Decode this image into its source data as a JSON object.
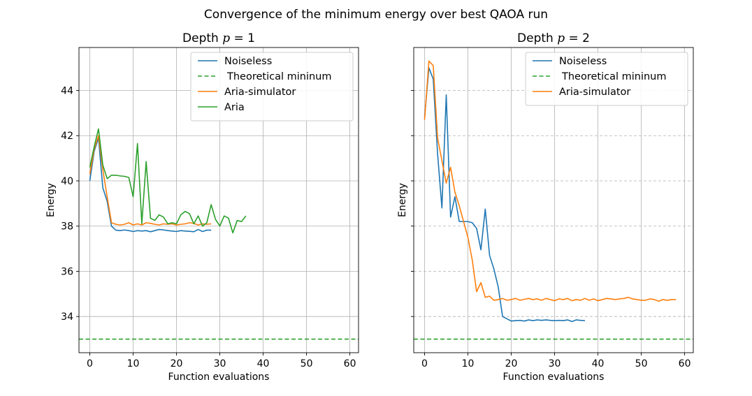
{
  "figure": {
    "suptitle": "Convergence of the minimum energy over best QAOA run"
  },
  "chart_data": [
    {
      "type": "line",
      "title": "Depth $p = 1$",
      "title_parts": {
        "prefix": "Depth ",
        "var": "p",
        "suffix": " = 1"
      },
      "xlabel": "Function evaluations",
      "ylabel": "Energy",
      "xlim": [
        -2.5,
        62
      ],
      "ylim": [
        32.4,
        45.9
      ],
      "xticks": [
        0,
        10,
        20,
        30,
        40,
        50,
        60
      ],
      "yticks": [
        34,
        36,
        38,
        40,
        42,
        44
      ],
      "grid": "both",
      "legend_position": "top-right",
      "series": [
        {
          "name": "Noiseless",
          "color": "#1f77b4",
          "style": "solid",
          "x": [
            0,
            1,
            2,
            3,
            4,
            5,
            6,
            7,
            8,
            9,
            10,
            11,
            12,
            13,
            14,
            15,
            16,
            17,
            18,
            19,
            20,
            21,
            22,
            23,
            24,
            25,
            26,
            27,
            28
          ],
          "y": [
            40.0,
            41.3,
            41.9,
            39.7,
            39.1,
            38.0,
            37.82,
            37.8,
            37.83,
            37.8,
            37.76,
            37.8,
            37.78,
            37.8,
            37.75,
            37.8,
            37.85,
            37.83,
            37.8,
            37.78,
            37.76,
            37.8,
            37.78,
            37.77,
            37.75,
            37.85,
            37.76,
            37.82,
            37.82
          ]
        },
        {
          "name": "Theoretical mininum",
          "color": "#2ca02c",
          "style": "dashed",
          "hline": 33.0
        },
        {
          "name": "Aria-simulator",
          "color": "#ff7f0e",
          "style": "solid",
          "x": [
            0,
            1,
            2,
            3,
            4,
            5,
            6,
            7,
            8,
            9,
            10,
            11,
            12,
            13,
            14,
            15,
            16,
            17,
            18,
            19,
            20,
            21,
            22,
            23,
            24,
            25,
            26,
            27,
            28
          ],
          "y": [
            40.3,
            41.4,
            42.0,
            40.5,
            39.3,
            38.15,
            38.08,
            38.05,
            38.08,
            38.15,
            38.05,
            38.1,
            38.05,
            38.15,
            38.12,
            38.08,
            38.05,
            38.1,
            38.08,
            38.1,
            38.05,
            38.08,
            38.1,
            38.15,
            38.12,
            38.05,
            38.1,
            38.08,
            38.1
          ]
        },
        {
          "name": "Aria",
          "color": "#2ca02c",
          "style": "solid",
          "x": [
            0,
            1,
            2,
            3,
            4,
            5,
            6,
            7,
            8,
            9,
            10,
            11,
            12,
            13,
            14,
            15,
            16,
            17,
            18,
            19,
            20,
            21,
            22,
            23,
            24,
            25,
            26,
            27,
            28,
            29,
            30,
            31,
            32,
            33,
            34,
            35,
            36
          ],
          "y": [
            40.6,
            41.5,
            42.3,
            40.7,
            40.1,
            40.25,
            40.25,
            40.22,
            40.2,
            40.15,
            39.3,
            41.65,
            38.1,
            40.85,
            38.35,
            38.25,
            38.5,
            38.4,
            38.1,
            38.15,
            38.1,
            38.5,
            38.65,
            38.55,
            38.1,
            38.45,
            38.0,
            38.15,
            38.95,
            38.3,
            38.0,
            38.45,
            38.35,
            37.7,
            38.25,
            38.2,
            38.45
          ]
        }
      ]
    },
    {
      "type": "line",
      "title": "Depth $p = 2$",
      "title_parts": {
        "prefix": "Depth ",
        "var": "p",
        "suffix": " = 2"
      },
      "xlabel": "Function evaluations",
      "ylabel": "Energy",
      "xlim": [
        -2.5,
        62
      ],
      "ylim": [
        32.4,
        45.9
      ],
      "xticks": [
        0,
        10,
        20,
        30,
        40,
        50,
        60
      ],
      "yticks": [
        34,
        36,
        38,
        40,
        42,
        44
      ],
      "ytick_labels_shown": false,
      "grid": "x-solid, y-dashed",
      "legend_position": "top-right",
      "series": [
        {
          "name": "Noiseless",
          "color": "#1f77b4",
          "style": "solid",
          "x": [
            0,
            1,
            2,
            3,
            4,
            5,
            6,
            7,
            8,
            9,
            10,
            11,
            12,
            13,
            14,
            15,
            16,
            17,
            18,
            19,
            20,
            21,
            22,
            23,
            24,
            25,
            26,
            27,
            28,
            29,
            30,
            31,
            32,
            33,
            34,
            35,
            36,
            37
          ],
          "y": [
            42.8,
            45.0,
            44.5,
            41.2,
            38.8,
            43.8,
            38.4,
            39.3,
            38.2,
            38.2,
            38.2,
            38.15,
            37.9,
            36.95,
            38.75,
            36.7,
            36.1,
            35.3,
            34.0,
            33.9,
            33.8,
            33.82,
            33.83,
            33.8,
            33.85,
            33.82,
            33.85,
            33.83,
            33.85,
            33.83,
            33.82,
            33.83,
            33.82,
            33.85,
            33.78,
            33.85,
            33.83,
            33.82
          ]
        },
        {
          "name": "Theoretical mininum",
          "color": "#2ca02c",
          "style": "dashed",
          "hline": 33.0
        },
        {
          "name": "Aria-simulator",
          "color": "#ff7f0e",
          "style": "solid",
          "x": [
            0,
            1,
            2,
            3,
            4,
            5,
            6,
            7,
            8,
            9,
            10,
            11,
            12,
            13,
            14,
            15,
            16,
            17,
            18,
            19,
            20,
            21,
            22,
            23,
            24,
            25,
            26,
            27,
            28,
            29,
            30,
            31,
            32,
            33,
            34,
            35,
            36,
            37,
            38,
            39,
            40,
            41,
            42,
            43,
            44,
            45,
            46,
            47,
            48,
            49,
            50,
            51,
            52,
            53,
            54,
            55,
            56,
            57,
            58
          ],
          "y": [
            42.7,
            45.3,
            45.1,
            41.9,
            40.9,
            39.9,
            40.6,
            39.5,
            38.9,
            38.2,
            37.5,
            36.5,
            35.1,
            35.5,
            34.85,
            34.9,
            34.72,
            34.75,
            34.8,
            34.72,
            34.75,
            34.8,
            34.72,
            34.76,
            34.8,
            34.75,
            34.78,
            34.72,
            34.8,
            34.75,
            34.7,
            34.78,
            34.75,
            34.8,
            34.7,
            34.75,
            34.72,
            34.8,
            34.72,
            34.78,
            34.7,
            34.75,
            34.8,
            34.78,
            34.75,
            34.78,
            34.8,
            34.85,
            34.78,
            34.75,
            34.72,
            34.72,
            34.78,
            34.75,
            34.68,
            34.75,
            34.72,
            34.75,
            34.75
          ]
        }
      ]
    }
  ]
}
